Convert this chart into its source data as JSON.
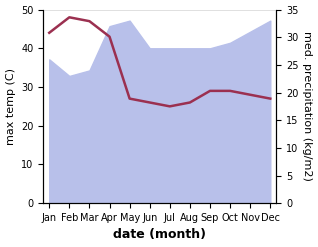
{
  "months": [
    "Jan",
    "Feb",
    "Mar",
    "Apr",
    "May",
    "Jun",
    "Jul",
    "Aug",
    "Sep",
    "Oct",
    "Nov",
    "Dec"
  ],
  "temp_line": [
    44,
    48,
    47,
    43,
    27,
    26,
    25,
    26,
    29,
    29,
    28,
    27
  ],
  "precip": [
    26,
    23,
    24,
    32,
    33,
    28,
    28,
    28,
    28,
    29,
    31,
    33
  ],
  "fill_color": "#b8c0ea",
  "line_color": "#9b3050",
  "ylabel_left": "max temp (C)",
  "ylabel_right": "med. precipitation (kg/m2)",
  "xlabel": "date (month)",
  "ylim_left": [
    0,
    50
  ],
  "ylim_right": [
    0,
    35
  ],
  "left_ticks": [
    0,
    10,
    20,
    30,
    40,
    50
  ],
  "right_ticks": [
    0,
    5,
    10,
    15,
    20,
    25,
    30,
    35
  ],
  "axis_fontsize": 8,
  "tick_fontsize": 7,
  "xlabel_fontsize": 9
}
